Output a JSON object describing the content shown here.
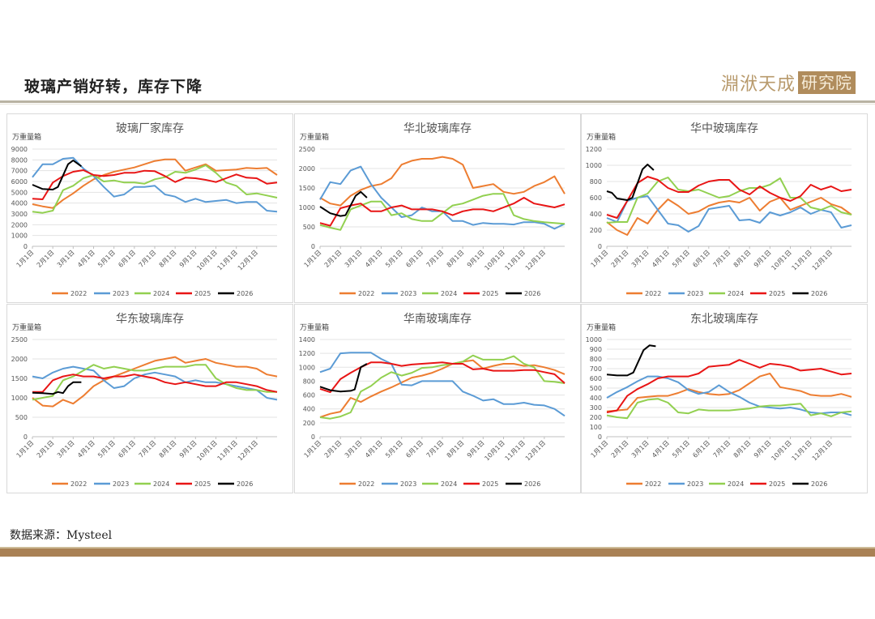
{
  "header": {
    "title": "玻璃产销好转，库存下降",
    "logo_left": "淵洑天成",
    "logo_right": "研究院"
  },
  "footer": {
    "source": "数据来源：Mysteel"
  },
  "colors": {
    "2022": "#ED7D31",
    "2023": "#5B9BD5",
    "2024": "#92D050",
    "2025": "#E81515",
    "2026": "#000000",
    "accent": "#A98155"
  },
  "chart_data": [
    {
      "type": "line",
      "title": "玻璃厂家库存",
      "ylabel": "万重量箱",
      "ylim": [
        0,
        9000
      ],
      "ystep": 1000,
      "xlabels": [
        "1月1日",
        "2月1日",
        "3月1日",
        "4月1日",
        "5月1日",
        "6月1日",
        "7月1日",
        "8月1日",
        "9月1日",
        "10月1日",
        "11月1日",
        "12月1日"
      ],
      "legend": "bottom",
      "series": [
        {
          "name": "2022",
          "values": [
            3900,
            3700,
            3550,
            4300,
            4900,
            5600,
            6200,
            6600,
            6900,
            7100,
            7300,
            7600,
            7900,
            8050,
            8050,
            7000,
            7300,
            7600,
            7000,
            7050,
            7100,
            7250,
            7200,
            7250,
            6600
          ]
        },
        {
          "name": "2023",
          "values": [
            6400,
            7600,
            7600,
            8100,
            8200,
            7200,
            6500,
            5500,
            4600,
            4800,
            5500,
            5500,
            5600,
            4800,
            4600,
            4100,
            4400,
            4100,
            4200,
            4300,
            4000,
            4100,
            4100,
            3300,
            3200
          ]
        },
        {
          "name": "2024",
          "values": [
            3200,
            3100,
            3300,
            5200,
            5600,
            6300,
            6600,
            6000,
            6100,
            5900,
            5900,
            5800,
            6200,
            6400,
            6900,
            6800,
            7100,
            7500,
            6800,
            5900,
            5600,
            4800,
            4900,
            4700,
            4500
          ]
        },
        {
          "name": "2025",
          "values": [
            4400,
            4350,
            5900,
            6500,
            6900,
            7050,
            6600,
            6500,
            6600,
            6800,
            6800,
            7000,
            6950,
            6500,
            5950,
            6350,
            6300,
            6150,
            5950,
            6300,
            6650,
            6350,
            6300,
            5800,
            5900
          ]
        },
        {
          "name": "2026",
          "x": [
            0,
            0.5,
            1,
            1.25,
            1.75,
            2,
            2.4
          ],
          "values": [
            5700,
            5300,
            5250,
            5500,
            7600,
            7950,
            7400
          ]
        }
      ]
    },
    {
      "type": "line",
      "title": "华北玻璃库存",
      "ylabel": "万重量箱",
      "ylim": [
        0,
        2500
      ],
      "ystep": 500,
      "xlabels": [
        "1月1日",
        "2月1日",
        "3月1日",
        "4月1日",
        "5月1日",
        "6月1日",
        "7月1日",
        "8月1日",
        "9月1日",
        "10月1日",
        "11月1日",
        "12月1日"
      ],
      "legend": "bottom",
      "series": [
        {
          "name": "2022",
          "values": [
            1250,
            1100,
            1050,
            1300,
            1450,
            1550,
            1600,
            1750,
            2100,
            2200,
            2250,
            2250,
            2300,
            2250,
            2100,
            1500,
            1550,
            1600,
            1400,
            1350,
            1400,
            1550,
            1650,
            1800,
            1350
          ]
        },
        {
          "name": "2023",
          "values": [
            1200,
            1650,
            1600,
            1950,
            2050,
            1600,
            1250,
            1000,
            750,
            800,
            1000,
            900,
            900,
            650,
            650,
            550,
            600,
            580,
            580,
            560,
            620,
            620,
            580,
            450,
            580
          ]
        },
        {
          "name": "2024",
          "values": [
            550,
            480,
            420,
            950,
            1050,
            1150,
            1150,
            800,
            850,
            700,
            650,
            650,
            850,
            1050,
            1100,
            1200,
            1300,
            1350,
            1350,
            800,
            700,
            650,
            620,
            600,
            580
          ]
        },
        {
          "name": "2025",
          "values": [
            600,
            530,
            980,
            1050,
            1100,
            900,
            900,
            1000,
            1050,
            950,
            950,
            950,
            900,
            800,
            900,
            950,
            950,
            900,
            1000,
            1100,
            1250,
            1100,
            1050,
            1000,
            1080
          ]
        },
        {
          "name": "2026",
          "x": [
            0,
            0.5,
            1,
            1.25,
            1.75,
            2,
            2.3
          ],
          "values": [
            1020,
            850,
            780,
            800,
            1300,
            1400,
            1250
          ]
        }
      ]
    },
    {
      "type": "line",
      "title": "华中玻璃库存",
      "ylabel": "万重量箱",
      "ylim": [
        0,
        1200
      ],
      "ystep": 200,
      "xlabels": [
        "1月1日",
        "2月1日",
        "3月1日",
        "4月1日",
        "5月1日",
        "6月1日",
        "7月1日",
        "8月1日",
        "9月1日",
        "10月1日",
        "11月1日",
        "12月1日"
      ],
      "legend": "bottom",
      "series": [
        {
          "name": "2022",
          "values": [
            300,
            200,
            140,
            350,
            280,
            450,
            580,
            500,
            400,
            430,
            500,
            540,
            560,
            540,
            600,
            440,
            550,
            600,
            450,
            500,
            550,
            600,
            520,
            480,
            390
          ]
        },
        {
          "name": "2023",
          "values": [
            350,
            300,
            560,
            600,
            620,
            450,
            280,
            260,
            180,
            250,
            460,
            480,
            500,
            320,
            330,
            290,
            420,
            380,
            420,
            480,
            400,
            450,
            420,
            230,
            260
          ]
        },
        {
          "name": "2024",
          "values": [
            290,
            300,
            300,
            600,
            650,
            800,
            850,
            700,
            680,
            700,
            650,
            600,
            620,
            680,
            720,
            720,
            760,
            840,
            600,
            600,
            480,
            450,
            500,
            420,
            390
          ]
        },
        {
          "name": "2025",
          "values": [
            390,
            350,
            560,
            780,
            860,
            820,
            720,
            670,
            670,
            750,
            800,
            820,
            820,
            700,
            640,
            740,
            660,
            600,
            560,
            620,
            760,
            700,
            740,
            680,
            700
          ]
        },
        {
          "name": "2026",
          "x": [
            0,
            0.25,
            0.5,
            1,
            1.25,
            1.75,
            2,
            2.3
          ],
          "values": [
            680,
            660,
            590,
            570,
            600,
            950,
            1010,
            940
          ]
        }
      ]
    },
    {
      "type": "line",
      "title": "华东玻璃库存",
      "ylabel": "万重量箱",
      "ylim": [
        0,
        2500
      ],
      "ystep": 500,
      "xlabels": [
        "1月1日",
        "2月1日",
        "3月1日",
        "4月1日",
        "5月1日",
        "6月1日",
        "7月1日",
        "8月1日",
        "9月1日",
        "10月1日",
        "11月1日",
        "12月1日"
      ],
      "legend": "bottom",
      "series": [
        {
          "name": "2022",
          "values": [
            1000,
            800,
            780,
            950,
            850,
            1050,
            1300,
            1450,
            1550,
            1650,
            1750,
            1850,
            1950,
            2000,
            2050,
            1900,
            1950,
            2000,
            1900,
            1850,
            1800,
            1800,
            1750,
            1600,
            1550
          ]
        },
        {
          "name": "2023",
          "values": [
            1550,
            1500,
            1650,
            1750,
            1800,
            1750,
            1700,
            1450,
            1250,
            1300,
            1500,
            1600,
            1650,
            1600,
            1550,
            1400,
            1450,
            1400,
            1400,
            1350,
            1300,
            1250,
            1200,
            1000,
            950
          ]
        },
        {
          "name": "2024",
          "values": [
            950,
            1000,
            1050,
            1450,
            1550,
            1700,
            1850,
            1750,
            1800,
            1750,
            1700,
            1700,
            1750,
            1800,
            1800,
            1800,
            1850,
            1850,
            1500,
            1350,
            1250,
            1200,
            1200,
            1150,
            1150
          ]
        },
        {
          "name": "2025",
          "values": [
            1150,
            1150,
            1450,
            1550,
            1600,
            1550,
            1550,
            1500,
            1550,
            1550,
            1600,
            1550,
            1500,
            1400,
            1350,
            1400,
            1350,
            1300,
            1300,
            1400,
            1400,
            1350,
            1300,
            1200,
            1150
          ]
        },
        {
          "name": "2026",
          "x": [
            0,
            0.5,
            1,
            1.25,
            1.5,
            1.75,
            2,
            2.4
          ],
          "values": [
            1130,
            1120,
            1100,
            1150,
            1120,
            1300,
            1400,
            1400
          ]
        }
      ]
    },
    {
      "type": "line",
      "title": "华南玻璃库存",
      "ylabel": "万重量箱",
      "ylim": [
        0,
        1400
      ],
      "ystep": 200,
      "xlabels": [
        "1月1日",
        "2月1日",
        "3月1日",
        "4月1日",
        "5月1日",
        "6月1日",
        "7月1日",
        "8月1日",
        "9月1日",
        "10月1日",
        "11月1日",
        "12月1日"
      ],
      "legend": "bottom",
      "series": [
        {
          "name": "2022",
          "values": [
            280,
            330,
            360,
            560,
            500,
            580,
            650,
            710,
            780,
            850,
            880,
            920,
            980,
            1050,
            1080,
            1100,
            980,
            1020,
            1050,
            1050,
            1020,
            1030,
            1000,
            960,
            900
          ]
        },
        {
          "name": "2023",
          "values": [
            930,
            980,
            1200,
            1210,
            1210,
            1210,
            1120,
            1050,
            750,
            740,
            800,
            800,
            800,
            800,
            650,
            590,
            520,
            540,
            470,
            470,
            490,
            460,
            450,
            400,
            300
          ]
        },
        {
          "name": "2024",
          "values": [
            280,
            260,
            290,
            350,
            650,
            730,
            850,
            930,
            880,
            920,
            990,
            1000,
            1030,
            1050,
            1080,
            1170,
            1110,
            1110,
            1110,
            1160,
            1050,
            1000,
            800,
            790,
            770
          ]
        },
        {
          "name": "2025",
          "values": [
            690,
            640,
            830,
            920,
            1000,
            1070,
            1070,
            1050,
            1020,
            1040,
            1050,
            1060,
            1070,
            1050,
            1050,
            970,
            980,
            950,
            950,
            950,
            960,
            960,
            930,
            900,
            770
          ]
        },
        {
          "name": "2026",
          "x": [
            0,
            0.5,
            1,
            1.5,
            1.7,
            2,
            2.3
          ],
          "values": [
            720,
            670,
            650,
            660,
            680,
            1000,
            1050
          ]
        }
      ]
    },
    {
      "type": "line",
      "title": "东北玻璃库存",
      "ylabel": "万重量箱",
      "ylim": [
        0,
        1000
      ],
      "ystep": 100,
      "xlabels": [
        "1月1日",
        "2月1日",
        "3月1日",
        "4月1日",
        "5月1日",
        "6月1日",
        "7月1日",
        "8月1日",
        "9月1日",
        "10月1日",
        "11月1日",
        "12月1日"
      ],
      "legend": "bottom",
      "series": [
        {
          "name": "2022",
          "values": [
            260,
            270,
            280,
            400,
            410,
            420,
            420,
            450,
            490,
            460,
            440,
            430,
            440,
            480,
            550,
            620,
            650,
            510,
            490,
            470,
            430,
            420,
            420,
            440,
            410
          ]
        },
        {
          "name": "2023",
          "values": [
            400,
            460,
            510,
            570,
            620,
            620,
            600,
            560,
            480,
            440,
            460,
            530,
            460,
            410,
            350,
            310,
            300,
            290,
            300,
            280,
            250,
            240,
            250,
            250,
            220
          ]
        },
        {
          "name": "2024",
          "values": [
            220,
            200,
            190,
            350,
            380,
            390,
            350,
            250,
            240,
            280,
            270,
            270,
            270,
            280,
            290,
            310,
            320,
            320,
            330,
            340,
            220,
            240,
            210,
            250,
            260
          ]
        },
        {
          "name": "2025",
          "values": [
            250,
            270,
            420,
            490,
            540,
            600,
            620,
            620,
            620,
            650,
            720,
            730,
            740,
            790,
            750,
            710,
            750,
            740,
            720,
            680,
            690,
            700,
            670,
            640,
            650
          ]
        },
        {
          "name": "2026",
          "x": [
            0,
            0.5,
            1,
            1.3,
            1.8,
            2.1,
            2.4
          ],
          "values": [
            640,
            630,
            630,
            660,
            890,
            940,
            930
          ]
        }
      ]
    }
  ]
}
